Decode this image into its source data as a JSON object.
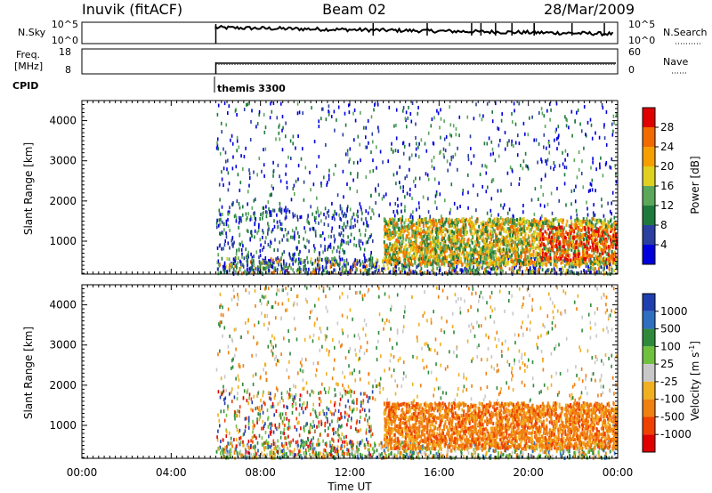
{
  "header": {
    "station": "Inuvik (fitACF)",
    "beam": "Beam 02",
    "date": "28/Mar/2009"
  },
  "noise_panel": {
    "left_label": "N.Sky",
    "left_ticks": [
      "10^5",
      "10^0"
    ],
    "right_label": "N.Search",
    "right_ticks": [
      "10^5",
      "10^0"
    ]
  },
  "freq_panel": {
    "left_label_line1": "Freq.",
    "left_label_line2": "[MHz]",
    "left_ticks": [
      "18",
      "8"
    ],
    "right_label": "Nave",
    "right_ticks": [
      "60",
      "0"
    ]
  },
  "cpid": {
    "label": "CPID",
    "program": "themis 3300"
  },
  "colors": {
    "power": [
      "#0000dd",
      "#2a3fa0",
      "#1e7a3c",
      "#5ba85a",
      "#e0d020",
      "#f5a000",
      "#f06a00",
      "#e00000"
    ],
    "velocity": [
      "#1f3fb0",
      "#2e6fc0",
      "#2e8a3a",
      "#70c040",
      "#c8c8c8",
      "#f0b020",
      "#f08010",
      "#f04000",
      "#e00000"
    ]
  },
  "chart_data": [
    {
      "type": "heatmap",
      "title": "",
      "xlabel": "",
      "ylabel": "Slant Range [km]",
      "x_ticks": [
        "00:00",
        "04:00",
        "08:00",
        "12:00",
        "16:00",
        "20:00",
        "00:00"
      ],
      "xlim_hours": [
        0,
        24
      ],
      "y_ticks": [
        "1000",
        "2000",
        "3000",
        "4000"
      ],
      "ylim_km": [
        180,
        4500
      ],
      "colorbar_label": "Power [dB]",
      "colorbar_ticks": [
        "4",
        "8",
        "12",
        "16",
        "20",
        "24",
        "28"
      ],
      "colorbar_range": [
        0,
        30
      ],
      "data_start_hour": 6.0,
      "regions": [
        {
          "h0": 6.0,
          "h1": 24.0,
          "r0": 200,
          "r1": 500,
          "level": "low-mixed"
        },
        {
          "h0": 13.5,
          "h1": 24.0,
          "r0": 500,
          "r1": 1600,
          "level": "moderate"
        },
        {
          "h0": 20.5,
          "h1": 23.5,
          "r0": 600,
          "r1": 1400,
          "level": "high"
        },
        {
          "h0": 6.0,
          "h1": 24.0,
          "r0": 1600,
          "r1": 4500,
          "level": "sparse"
        }
      ]
    },
    {
      "type": "heatmap",
      "title": "",
      "xlabel": "Time UT",
      "ylabel": "Slant Range [km]",
      "x_ticks": [
        "00:00",
        "04:00",
        "08:00",
        "12:00",
        "16:00",
        "20:00",
        "00:00"
      ],
      "xlim_hours": [
        0,
        24
      ],
      "y_ticks": [
        "1000",
        "2000",
        "3000",
        "4000"
      ],
      "ylim_km": [
        180,
        4500
      ],
      "colorbar_label": "Velocity [m s^-1]",
      "colorbar_ticks": [
        "1000",
        "500",
        "100",
        "25",
        "-25",
        "-100",
        "-500",
        "-1000"
      ],
      "colorbar_range": [
        -1000,
        1000
      ],
      "data_start_hour": 6.0,
      "regions": [
        {
          "h0": 6.0,
          "h1": 13.0,
          "r0": 200,
          "r1": 1500,
          "level": "mixed-toward"
        },
        {
          "h0": 13.5,
          "h1": 24.0,
          "r0": 400,
          "r1": 1600,
          "level": "away-orange"
        },
        {
          "h0": 19.0,
          "h1": 22.5,
          "r0": 2500,
          "r1": 4000,
          "level": "grey-small"
        }
      ]
    }
  ]
}
